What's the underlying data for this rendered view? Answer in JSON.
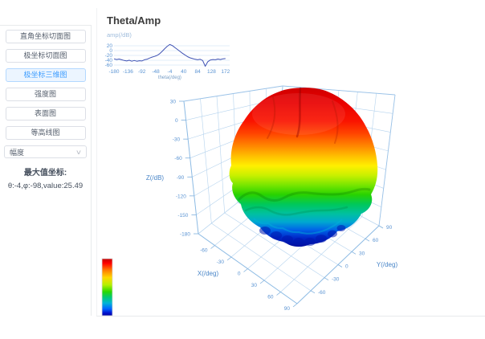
{
  "sidebar": {
    "buttons": [
      {
        "label": "直角坐标切面图",
        "active": false
      },
      {
        "label": "极坐标切面图",
        "active": false
      },
      {
        "label": "极坐标三维图",
        "active": true
      },
      {
        "label": "强度图",
        "active": false
      },
      {
        "label": "表面图",
        "active": false
      },
      {
        "label": "等高线图",
        "active": false
      }
    ],
    "dropdown": {
      "value": "幅度",
      "chevron": "∨"
    },
    "max_coord_label": "最大值坐标:",
    "max_coord_value": "θ:-4,φ:-98,value:25.49"
  },
  "main": {
    "title": "Theta/Amp"
  },
  "chart_data": [
    {
      "type": "line",
      "title": "Theta/Amp",
      "ylabel": "amp(/dB)",
      "xlabel": "theta(/deg)",
      "x_ticks": [
        -180,
        -136,
        -92,
        -48,
        -4,
        40,
        84,
        128,
        172
      ],
      "y_ticks": [
        20,
        0,
        -20,
        -40,
        -60
      ],
      "xlim": [
        -180,
        180
      ],
      "ylim": [
        -70,
        30
      ],
      "grid": true,
      "line_color": "#4153b4",
      "x": [
        -180,
        -172,
        -164,
        -156,
        -148,
        -140,
        -132,
        -124,
        -116,
        -108,
        -100,
        -92,
        -84,
        -76,
        -68,
        -60,
        -52,
        -44,
        -36,
        -28,
        -20,
        -12,
        -4,
        4,
        12,
        20,
        28,
        36,
        44,
        52,
        60,
        68,
        76,
        84,
        92,
        100,
        108,
        116,
        124,
        132,
        140,
        148,
        156,
        164,
        172
      ],
      "y": [
        -34,
        -37,
        -35,
        -38,
        -41,
        -43,
        -40,
        -44,
        -41,
        -44,
        -42,
        -43,
        -38,
        -36,
        -31,
        -27,
        -24,
        -20,
        -13,
        -3,
        8,
        18,
        25.49,
        21,
        13,
        5,
        -3,
        -11,
        -18,
        -25,
        -30,
        -33,
        -36,
        -38,
        -36,
        -41,
        -65,
        -46,
        -39,
        -37,
        -38,
        -35,
        -37,
        -34,
        -33
      ]
    },
    {
      "type": "surface3d",
      "description": "3D polar radiation pattern (rainbow colormap sphere-like lobe)",
      "x_axis": {
        "label": "X(/deg)",
        "ticks": [
          -60,
          -30,
          0,
          30,
          60,
          90
        ],
        "range": [
          -90,
          90
        ]
      },
      "y_axis": {
        "label": "Y(/deg)",
        "ticks": [
          -60,
          -30,
          0,
          30,
          60,
          90
        ],
        "range": [
          -90,
          90
        ]
      },
      "z_axis": {
        "label": "Z(/dB)",
        "ticks": [
          30,
          0,
          -30,
          -60,
          -90,
          -120,
          -150,
          -180
        ],
        "range": [
          -180,
          30
        ]
      },
      "max_point": {
        "theta": -4,
        "phi": -98,
        "value": 25.49
      },
      "colormap": [
        "#0010a0",
        "#0028c8",
        "#0064e8",
        "#00a8d0",
        "#00c0a0",
        "#00c85a",
        "#28d200",
        "#78e600",
        "#c8f000",
        "#fff000",
        "#ffc000",
        "#ff8200",
        "#ff4600",
        "#fa1400",
        "#e80000",
        "#cc0000"
      ],
      "grid_color": "#b5d3ee"
    }
  ],
  "colors": {
    "accent": "#409eff",
    "accent_bg": "#ecf5ff",
    "accent_border": "#b3d8ff",
    "tick_label": "#5b94d3",
    "axis_name": "#4a86c8",
    "divider": "#e8eaec"
  }
}
